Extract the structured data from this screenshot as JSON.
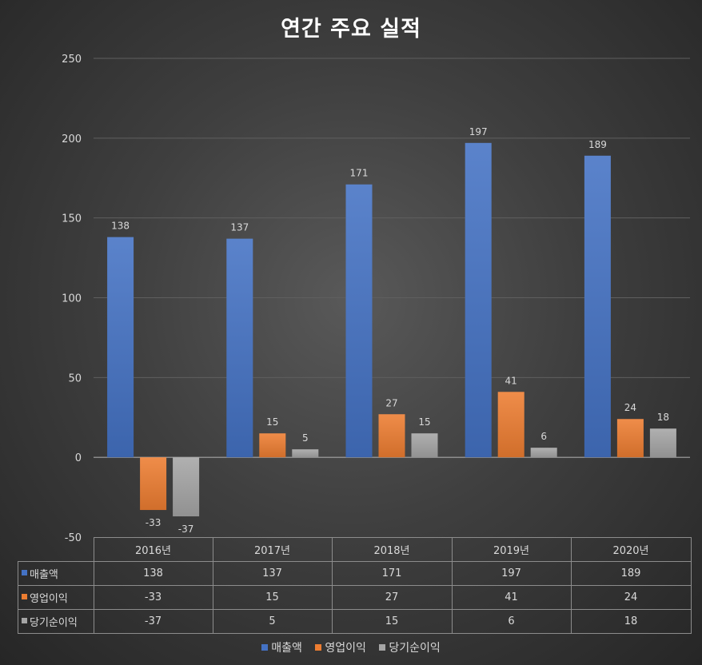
{
  "chart_data": {
    "type": "bar",
    "title": "연간 주요 실적",
    "categories": [
      "2016년",
      "2017년",
      "2018년",
      "2019년",
      "2020년"
    ],
    "series": [
      {
        "name": "매출액",
        "values": [
          138,
          137,
          171,
          197,
          189
        ],
        "color": "#4472c4"
      },
      {
        "name": "영업이익",
        "values": [
          -33,
          15,
          27,
          41,
          24
        ],
        "color": "#ed7d31"
      },
      {
        "name": "당기순이익",
        "values": [
          -37,
          5,
          15,
          6,
          18
        ],
        "color": "#a5a5a5"
      }
    ],
    "ylim": [
      -50,
      250
    ],
    "yticks": [
      250,
      200,
      150,
      100,
      50,
      0,
      -50
    ],
    "grid": true,
    "legend": "bottom",
    "data_table": true
  }
}
